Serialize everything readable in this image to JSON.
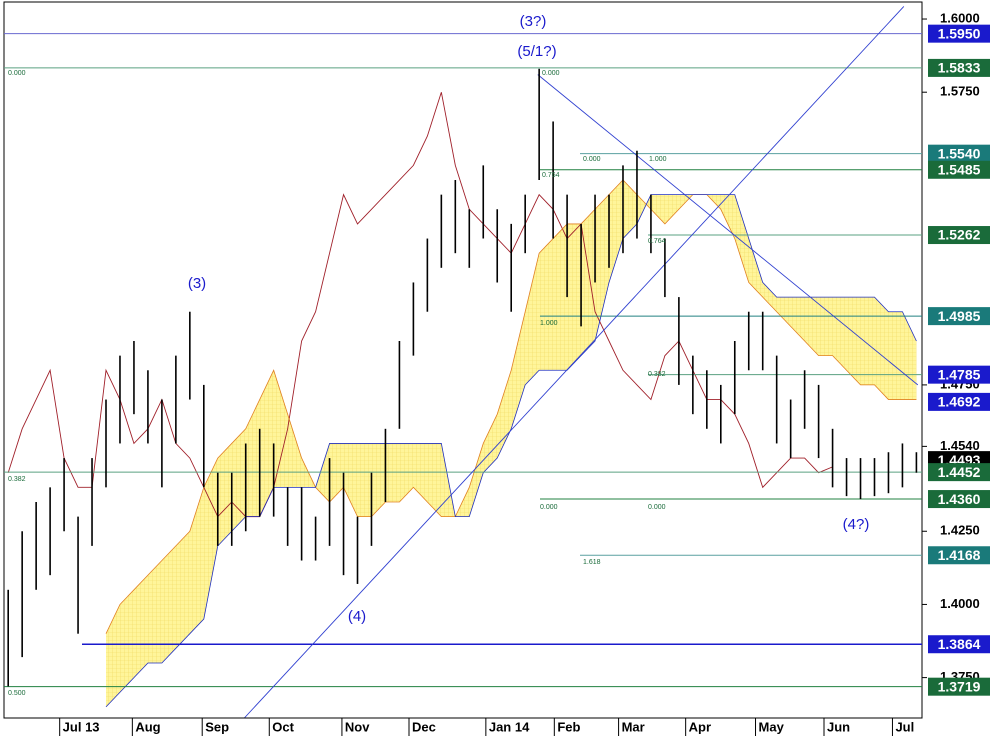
{
  "chart_data": {
    "type": "ohlc",
    "xlim": [
      -0.3,
      65.4
    ],
    "ylim": [
      1.3612,
      1.6065
    ],
    "xticks": [
      {
        "value": 3.9,
        "label": "Jul 13"
      },
      {
        "value": 9.1,
        "label": "Aug"
      },
      {
        "value": 14.1,
        "label": "Sep"
      },
      {
        "value": 18.9,
        "label": "Oct"
      },
      {
        "value": 24.1,
        "label": "Nov"
      },
      {
        "value": 28.9,
        "label": "Dec"
      },
      {
        "value": 34.4,
        "label": "Jan 14"
      },
      {
        "value": 39.3,
        "label": "Feb"
      },
      {
        "value": 43.9,
        "label": "Mar"
      },
      {
        "value": 48.7,
        "label": "Apr"
      },
      {
        "value": 53.7,
        "label": "May"
      },
      {
        "value": 58.6,
        "label": "Jun"
      },
      {
        "value": 63.5,
        "label": "Jul"
      }
    ],
    "yticks": [
      {
        "value": 1.6,
        "label": "1.6000"
      },
      {
        "value": 1.575,
        "label": "1.5750"
      },
      {
        "value": 1.475,
        "label": "1.4750"
      },
      {
        "value": 1.454,
        "label": "1.4540"
      },
      {
        "value": 1.425,
        "label": "1.4250"
      },
      {
        "value": 1.4,
        "label": "1.4000"
      },
      {
        "value": 1.375,
        "label": "1.3750"
      }
    ],
    "high": [
      1.405,
      1.425,
      1.435,
      1.44,
      1.45,
      1.43,
      1.45,
      1.47,
      1.485,
      1.49,
      1.48,
      1.47,
      1.485,
      1.5,
      1.475,
      1.445,
      1.445,
      1.455,
      1.46,
      1.455,
      1.44,
      1.44,
      1.43,
      1.45,
      1.445,
      1.43,
      1.445,
      1.46,
      1.49,
      1.51,
      1.525,
      1.54,
      1.545,
      1.535,
      1.55,
      1.535,
      1.53,
      1.54,
      1.583,
      1.565,
      1.54,
      1.53,
      1.54,
      1.54,
      1.55,
      1.555,
      1.54,
      1.525,
      1.505,
      1.485,
      1.48,
      1.475,
      1.49,
      1.5,
      1.5,
      1.485,
      1.47,
      1.48,
      1.475,
      1.46,
      1.45,
      1.45,
      1.45,
      1.452,
      1.455,
      1.452
    ],
    "low": [
      1.372,
      1.382,
      1.405,
      1.41,
      1.425,
      1.39,
      1.42,
      1.44,
      1.455,
      1.465,
      1.455,
      1.44,
      1.455,
      1.47,
      1.44,
      1.42,
      1.42,
      1.425,
      1.43,
      1.43,
      1.42,
      1.415,
      1.415,
      1.42,
      1.41,
      1.407,
      1.42,
      1.435,
      1.46,
      1.485,
      1.5,
      1.515,
      1.52,
      1.515,
      1.525,
      1.51,
      1.5,
      1.52,
      1.545,
      1.525,
      1.505,
      1.495,
      1.51,
      1.515,
      1.52,
      1.525,
      1.52,
      1.505,
      1.475,
      1.465,
      1.46,
      1.455,
      1.465,
      1.48,
      1.48,
      1.455,
      1.45,
      1.46,
      1.45,
      1.44,
      1.437,
      1.436,
      1.437,
      1.438,
      1.44,
      1.445
    ],
    "series": [
      {
        "name": "lagging",
        "color": "#a0202a",
        "values": [
          1.445,
          1.46,
          1.47,
          1.48,
          1.45,
          1.44,
          1.44,
          1.48,
          1.47,
          1.455,
          1.46,
          1.47,
          1.455,
          1.45,
          1.44,
          1.43,
          1.435,
          1.43,
          1.43,
          1.44,
          1.46,
          1.49,
          1.5,
          1.52,
          1.54,
          1.53,
          1.535,
          1.54,
          1.545,
          1.55,
          1.56,
          1.575,
          1.55,
          1.535,
          1.53,
          1.525,
          1.52,
          1.53,
          1.54,
          1.535,
          1.525,
          1.53,
          1.5,
          1.49,
          1.48,
          1.475,
          1.47,
          1.485,
          1.49,
          1.48,
          1.47,
          1.47,
          1.465,
          1.455,
          1.44,
          1.445,
          1.45,
          1.45,
          1.445,
          1.447,
          null,
          null,
          null,
          null,
          null,
          null
        ]
      },
      {
        "name": "span-a",
        "color": "#e08020",
        "values": [
          null,
          null,
          null,
          null,
          null,
          null,
          null,
          1.39,
          1.4,
          1.405,
          1.41,
          1.415,
          1.42,
          1.425,
          1.44,
          1.45,
          1.455,
          1.46,
          1.47,
          1.48,
          1.465,
          1.45,
          1.44,
          1.435,
          1.44,
          1.43,
          1.43,
          1.435,
          1.435,
          1.44,
          1.435,
          1.43,
          1.43,
          1.44,
          1.455,
          1.465,
          1.48,
          1.5,
          1.52,
          1.525,
          1.53,
          1.53,
          1.535,
          1.54,
          1.545,
          1.54,
          1.535,
          1.53,
          1.535,
          1.54,
          1.54,
          1.535,
          1.525,
          1.51,
          1.505,
          1.5,
          1.495,
          1.49,
          1.485,
          1.485,
          1.48,
          1.475,
          1.475,
          1.47,
          1.47,
          1.47
        ]
      },
      {
        "name": "span-b",
        "color": "#2030c0",
        "values": [
          null,
          null,
          null,
          null,
          null,
          null,
          null,
          1.365,
          1.37,
          1.375,
          1.38,
          1.38,
          1.385,
          1.39,
          1.395,
          1.42,
          1.425,
          1.43,
          1.43,
          1.44,
          1.44,
          1.44,
          1.44,
          1.455,
          1.455,
          1.455,
          1.455,
          1.455,
          1.455,
          1.455,
          1.455,
          1.455,
          1.43,
          1.43,
          1.445,
          1.45,
          1.46,
          1.475,
          1.48,
          1.48,
          1.48,
          1.485,
          1.49,
          1.51,
          1.525,
          1.53,
          1.54,
          1.54,
          1.54,
          1.54,
          1.54,
          1.54,
          1.54,
          1.525,
          1.51,
          1.505,
          1.505,
          1.505,
          1.505,
          1.505,
          1.505,
          1.505,
          1.505,
          1.5,
          1.5,
          1.49
        ]
      }
    ],
    "trendlines": [
      {
        "x": [
          16.9,
          64.1
        ],
        "y": [
          1.3612,
          1.6043
        ]
      },
      {
        "x": [
          37.9,
          65.1
        ],
        "y": [
          1.581,
          1.475
        ]
      }
    ],
    "levels": [
      {
        "value": 1.595,
        "label": "1.5950"
      },
      1.5833,
      {
        "value": 1.554,
        "label": "1.5540"
      },
      1.5485,
      1.5262,
      1.4985,
      1.4785,
      1.4692,
      1.4493,
      1.4452,
      {
        "value": 1.436,
        "label": "1.4360"
      },
      1.4168,
      1.3864,
      1.3719
    ],
    "wave_labels": [
      "(3?)",
      "(5/1?)",
      "(3)",
      "(4)",
      "(4?)"
    ],
    "fib_labels": [
      "0.000",
      "0.382",
      "0.500",
      "0.000",
      "0.000",
      "1.000",
      "0.764",
      "0.764",
      "1.000",
      "0.382",
      "0.000",
      "0.000",
      "1.618"
    ]
  }
}
